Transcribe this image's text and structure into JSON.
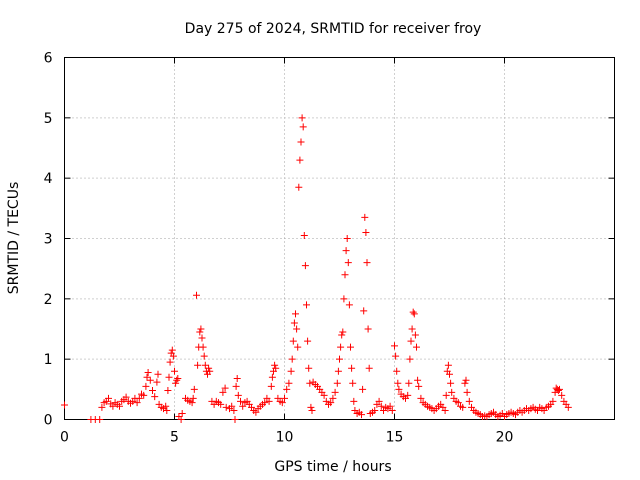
{
  "chart_data": {
    "type": "scatter",
    "title": "Day 275 of 2024, SRMTID for receiver froy",
    "xlabel": "GPS time / hours",
    "ylabel": "SRMTID / TECUs",
    "xlim": [
      0,
      25
    ],
    "ylim": [
      0,
      6
    ],
    "xticks": [
      0,
      5,
      10,
      15,
      20
    ],
    "yticks": [
      0,
      1,
      2,
      3,
      4,
      5,
      6
    ],
    "grid": true,
    "marker": "plus",
    "marker_color": "#ff0000",
    "series": [
      {
        "name": "SRMTID",
        "points": [
          [
            0.0,
            0.24
          ],
          [
            1.2,
            0.0
          ],
          [
            1.4,
            0.0
          ],
          [
            1.6,
            0.0
          ],
          [
            1.7,
            0.2
          ],
          [
            1.8,
            0.28
          ],
          [
            1.9,
            0.3
          ],
          [
            2.0,
            0.35
          ],
          [
            2.1,
            0.26
          ],
          [
            2.2,
            0.22
          ],
          [
            2.3,
            0.28
          ],
          [
            2.4,
            0.25
          ],
          [
            2.5,
            0.22
          ],
          [
            2.6,
            0.3
          ],
          [
            2.7,
            0.33
          ],
          [
            2.8,
            0.37
          ],
          [
            2.9,
            0.3
          ],
          [
            3.0,
            0.27
          ],
          [
            3.1,
            0.3
          ],
          [
            3.2,
            0.35
          ],
          [
            3.3,
            0.28
          ],
          [
            3.4,
            0.35
          ],
          [
            3.5,
            0.42
          ],
          [
            3.6,
            0.4
          ],
          [
            3.7,
            0.55
          ],
          [
            3.75,
            0.7
          ],
          [
            3.8,
            0.78
          ],
          [
            3.9,
            0.65
          ],
          [
            4.0,
            0.48
          ],
          [
            4.1,
            0.38
          ],
          [
            4.2,
            0.62
          ],
          [
            4.25,
            0.75
          ],
          [
            4.3,
            0.25
          ],
          [
            4.4,
            0.2
          ],
          [
            4.5,
            0.18
          ],
          [
            4.6,
            0.22
          ],
          [
            4.65,
            0.15
          ],
          [
            4.7,
            0.48
          ],
          [
            4.75,
            0.7
          ],
          [
            4.8,
            0.95
          ],
          [
            4.85,
            1.1
          ],
          [
            4.9,
            1.15
          ],
          [
            4.95,
            1.05
          ],
          [
            5.0,
            0.8
          ],
          [
            5.05,
            0.6
          ],
          [
            5.1,
            0.65
          ],
          [
            5.15,
            0.68
          ],
          [
            5.2,
            0.05
          ],
          [
            5.3,
            0.0
          ],
          [
            5.35,
            0.1
          ],
          [
            5.5,
            0.35
          ],
          [
            5.6,
            0.32
          ],
          [
            5.7,
            0.3
          ],
          [
            5.8,
            0.28
          ],
          [
            5.85,
            0.35
          ],
          [
            5.9,
            0.5
          ],
          [
            6.0,
            2.06
          ],
          [
            6.05,
            0.9
          ],
          [
            6.1,
            1.2
          ],
          [
            6.15,
            1.45
          ],
          [
            6.2,
            1.5
          ],
          [
            6.25,
            1.35
          ],
          [
            6.3,
            1.2
          ],
          [
            6.35,
            1.05
          ],
          [
            6.4,
            0.9
          ],
          [
            6.45,
            0.8
          ],
          [
            6.5,
            0.75
          ],
          [
            6.55,
            0.85
          ],
          [
            6.6,
            0.8
          ],
          [
            6.7,
            0.3
          ],
          [
            6.8,
            0.25
          ],
          [
            6.9,
            0.3
          ],
          [
            7.0,
            0.28
          ],
          [
            7.1,
            0.25
          ],
          [
            7.2,
            0.45
          ],
          [
            7.3,
            0.52
          ],
          [
            7.35,
            0.2
          ],
          [
            7.5,
            0.18
          ],
          [
            7.6,
            0.22
          ],
          [
            7.7,
            0.15
          ],
          [
            7.75,
            0.0
          ],
          [
            7.8,
            0.55
          ],
          [
            7.85,
            0.68
          ],
          [
            7.9,
            0.4
          ],
          [
            8.0,
            0.3
          ],
          [
            8.1,
            0.22
          ],
          [
            8.2,
            0.28
          ],
          [
            8.3,
            0.3
          ],
          [
            8.4,
            0.25
          ],
          [
            8.5,
            0.2
          ],
          [
            8.6,
            0.15
          ],
          [
            8.7,
            0.12
          ],
          [
            8.8,
            0.18
          ],
          [
            8.9,
            0.22
          ],
          [
            9.0,
            0.25
          ],
          [
            9.1,
            0.28
          ],
          [
            9.2,
            0.35
          ],
          [
            9.3,
            0.3
          ],
          [
            9.4,
            0.55
          ],
          [
            9.45,
            0.7
          ],
          [
            9.5,
            0.8
          ],
          [
            9.55,
            0.9
          ],
          [
            9.6,
            0.85
          ],
          [
            9.7,
            0.35
          ],
          [
            9.8,
            0.3
          ],
          [
            9.9,
            0.28
          ],
          [
            10.0,
            0.35
          ],
          [
            10.1,
            0.5
          ],
          [
            10.2,
            0.6
          ],
          [
            10.3,
            0.8
          ],
          [
            10.35,
            1.0
          ],
          [
            10.4,
            1.3
          ],
          [
            10.45,
            1.6
          ],
          [
            10.5,
            1.75
          ],
          [
            10.55,
            1.5
          ],
          [
            10.6,
            1.2
          ],
          [
            10.65,
            3.85
          ],
          [
            10.7,
            4.3
          ],
          [
            10.75,
            4.6
          ],
          [
            10.8,
            5.0
          ],
          [
            10.85,
            4.85
          ],
          [
            10.9,
            3.05
          ],
          [
            10.95,
            2.55
          ],
          [
            11.0,
            1.9
          ],
          [
            11.05,
            1.3
          ],
          [
            11.1,
            0.85
          ],
          [
            11.15,
            0.6
          ],
          [
            11.2,
            0.2
          ],
          [
            11.25,
            0.15
          ],
          [
            11.3,
            0.62
          ],
          [
            11.4,
            0.58
          ],
          [
            11.5,
            0.55
          ],
          [
            11.6,
            0.5
          ],
          [
            11.7,
            0.45
          ],
          [
            11.8,
            0.4
          ],
          [
            11.9,
            0.3
          ],
          [
            12.0,
            0.25
          ],
          [
            12.1,
            0.28
          ],
          [
            12.2,
            0.35
          ],
          [
            12.3,
            0.45
          ],
          [
            12.4,
            0.6
          ],
          [
            12.45,
            0.8
          ],
          [
            12.5,
            1.0
          ],
          [
            12.55,
            1.2
          ],
          [
            12.6,
            1.4
          ],
          [
            12.65,
            1.45
          ],
          [
            12.7,
            2.0
          ],
          [
            12.75,
            2.4
          ],
          [
            12.8,
            2.8
          ],
          [
            12.85,
            3.0
          ],
          [
            12.9,
            2.6
          ],
          [
            12.95,
            1.9
          ],
          [
            13.0,
            1.2
          ],
          [
            13.05,
            0.85
          ],
          [
            13.1,
            0.6
          ],
          [
            13.15,
            0.3
          ],
          [
            13.2,
            0.15
          ],
          [
            13.3,
            0.1
          ],
          [
            13.4,
            0.12
          ],
          [
            13.5,
            0.08
          ],
          [
            13.55,
            0.5
          ],
          [
            13.6,
            1.8
          ],
          [
            13.65,
            3.35
          ],
          [
            13.7,
            3.1
          ],
          [
            13.75,
            2.6
          ],
          [
            13.8,
            1.5
          ],
          [
            13.85,
            0.85
          ],
          [
            13.9,
            0.1
          ],
          [
            14.0,
            0.12
          ],
          [
            14.1,
            0.15
          ],
          [
            14.2,
            0.25
          ],
          [
            14.3,
            0.3
          ],
          [
            14.4,
            0.22
          ],
          [
            14.5,
            0.15
          ],
          [
            14.6,
            0.2
          ],
          [
            14.7,
            0.18
          ],
          [
            14.8,
            0.22
          ],
          [
            14.9,
            0.15
          ],
          [
            15.0,
            1.22
          ],
          [
            15.05,
            1.05
          ],
          [
            15.1,
            0.8
          ],
          [
            15.15,
            0.6
          ],
          [
            15.2,
            0.5
          ],
          [
            15.3,
            0.42
          ],
          [
            15.4,
            0.38
          ],
          [
            15.5,
            0.35
          ],
          [
            15.6,
            0.4
          ],
          [
            15.65,
            0.6
          ],
          [
            15.7,
            1.0
          ],
          [
            15.75,
            1.3
          ],
          [
            15.8,
            1.5
          ],
          [
            15.85,
            1.78
          ],
          [
            15.9,
            1.75
          ],
          [
            15.95,
            1.4
          ],
          [
            16.0,
            1.2
          ],
          [
            16.05,
            0.65
          ],
          [
            16.1,
            0.55
          ],
          [
            16.2,
            0.35
          ],
          [
            16.3,
            0.28
          ],
          [
            16.4,
            0.25
          ],
          [
            16.5,
            0.22
          ],
          [
            16.6,
            0.2
          ],
          [
            16.7,
            0.18
          ],
          [
            16.8,
            0.15
          ],
          [
            16.9,
            0.18
          ],
          [
            17.0,
            0.22
          ],
          [
            17.1,
            0.25
          ],
          [
            17.2,
            0.2
          ],
          [
            17.3,
            0.15
          ],
          [
            17.35,
            0.4
          ],
          [
            17.4,
            0.8
          ],
          [
            17.45,
            0.9
          ],
          [
            17.5,
            0.75
          ],
          [
            17.55,
            0.6
          ],
          [
            17.6,
            0.45
          ],
          [
            17.7,
            0.35
          ],
          [
            17.8,
            0.3
          ],
          [
            17.9,
            0.28
          ],
          [
            18.0,
            0.22
          ],
          [
            18.1,
            0.2
          ],
          [
            18.2,
            0.6
          ],
          [
            18.25,
            0.65
          ],
          [
            18.3,
            0.45
          ],
          [
            18.4,
            0.3
          ],
          [
            18.5,
            0.2
          ],
          [
            18.6,
            0.15
          ],
          [
            18.7,
            0.12
          ],
          [
            18.8,
            0.1
          ],
          [
            18.9,
            0.08
          ],
          [
            19.0,
            0.05
          ],
          [
            19.1,
            0.06
          ],
          [
            19.2,
            0.05
          ],
          [
            19.3,
            0.08
          ],
          [
            19.4,
            0.1
          ],
          [
            19.5,
            0.12
          ],
          [
            19.6,
            0.08
          ],
          [
            19.7,
            0.05
          ],
          [
            19.8,
            0.07
          ],
          [
            19.9,
            0.1
          ],
          [
            20.0,
            0.05
          ],
          [
            20.1,
            0.08
          ],
          [
            20.2,
            0.1
          ],
          [
            20.3,
            0.12
          ],
          [
            20.4,
            0.1
          ],
          [
            20.5,
            0.08
          ],
          [
            20.6,
            0.12
          ],
          [
            20.7,
            0.15
          ],
          [
            20.8,
            0.12
          ],
          [
            20.9,
            0.15
          ],
          [
            21.0,
            0.18
          ],
          [
            21.1,
            0.15
          ],
          [
            21.2,
            0.18
          ],
          [
            21.3,
            0.2
          ],
          [
            21.4,
            0.17
          ],
          [
            21.5,
            0.15
          ],
          [
            21.6,
            0.2
          ],
          [
            21.7,
            0.18
          ],
          [
            21.8,
            0.15
          ],
          [
            21.9,
            0.2
          ],
          [
            22.0,
            0.22
          ],
          [
            22.1,
            0.25
          ],
          [
            22.2,
            0.3
          ],
          [
            22.3,
            0.45
          ],
          [
            22.35,
            0.52
          ],
          [
            22.4,
            0.5
          ],
          [
            22.45,
            0.48
          ],
          [
            22.5,
            0.5
          ],
          [
            22.6,
            0.4
          ],
          [
            22.7,
            0.3
          ],
          [
            22.8,
            0.25
          ],
          [
            22.9,
            0.2
          ]
        ]
      }
    ]
  }
}
